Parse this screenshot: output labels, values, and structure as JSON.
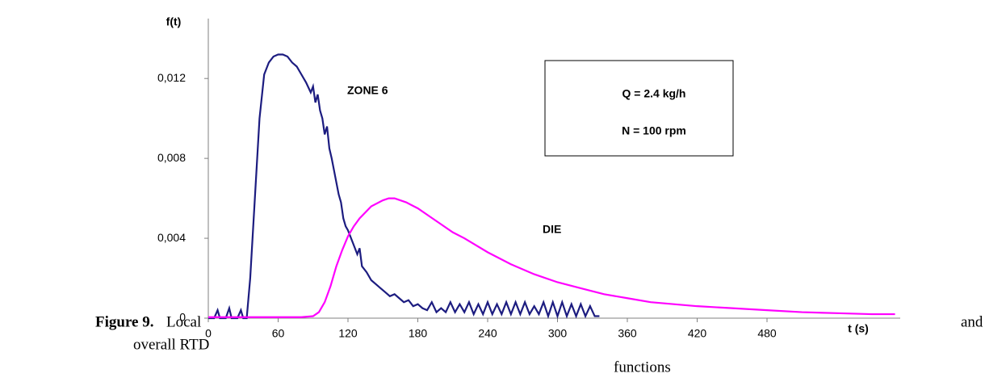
{
  "chart_data": {
    "type": "line",
    "y_label": "f(t)",
    "x_label": "t (s)",
    "xlim": [
      0,
      600
    ],
    "xticks": [
      0,
      60,
      120,
      180,
      240,
      300,
      360,
      420,
      480
    ],
    "ylim": [
      0,
      0.015
    ],
    "yticks": [
      0,
      {
        "value": 0.004,
        "label": "0,004"
      },
      {
        "value": 0.008,
        "label": "0,008"
      },
      {
        "value": 0.012,
        "label": "0,012"
      }
    ],
    "grid": false,
    "annotations": [
      "Q = 2.4 kg/h",
      "N = 100 rpm"
    ],
    "series": [
      {
        "name": "ZONE 6",
        "color": "#1c1c80",
        "x": [
          0,
          5,
          8,
          10,
          15,
          18,
          20,
          25,
          28,
          30,
          33,
          36,
          40,
          44,
          48,
          52,
          56,
          60,
          64,
          68,
          72,
          76,
          80,
          84,
          88,
          90,
          92,
          94,
          96,
          98,
          100,
          102,
          104,
          106,
          108,
          110,
          112,
          114,
          116,
          118,
          120,
          124,
          128,
          130,
          132,
          136,
          140,
          144,
          148,
          152,
          156,
          160,
          164,
          168,
          172,
          176,
          180,
          184,
          188,
          192,
          196,
          200,
          204,
          208,
          212,
          216,
          220,
          224,
          228,
          232,
          236,
          240,
          244,
          248,
          252,
          256,
          260,
          264,
          268,
          272,
          276,
          280,
          284,
          288,
          292,
          296,
          300,
          304,
          308,
          312,
          316,
          320,
          324,
          328,
          332,
          336
        ],
        "values": [
          0,
          0,
          0.0004,
          0,
          0,
          0.0005,
          0,
          0,
          0.0004,
          0,
          0,
          0.002,
          0.006,
          0.01,
          0.0122,
          0.0128,
          0.0131,
          0.0132,
          0.0132,
          0.0131,
          0.0128,
          0.0126,
          0.0122,
          0.0118,
          0.0113,
          0.0116,
          0.0108,
          0.0112,
          0.0104,
          0.01,
          0.0092,
          0.0096,
          0.0085,
          0.008,
          0.0074,
          0.0068,
          0.0062,
          0.0058,
          0.005,
          0.0046,
          0.0044,
          0.0038,
          0.0032,
          0.0035,
          0.0026,
          0.0023,
          0.0019,
          0.0017,
          0.0015,
          0.0013,
          0.0011,
          0.0012,
          0.001,
          0.0008,
          0.0009,
          0.0006,
          0.0007,
          0.0005,
          0.0004,
          0.0008,
          0.0003,
          0.0005,
          0.0003,
          0.0008,
          0.0003,
          0.0007,
          0.0003,
          0.0008,
          0.0002,
          0.0007,
          0.0002,
          0.0008,
          0.0002,
          0.0007,
          0.0002,
          0.0008,
          0.0002,
          0.0008,
          0.0002,
          0.0008,
          0.0002,
          0.0006,
          0.0002,
          0.0008,
          0.0001,
          0.0008,
          0.0001,
          0.0008,
          0.0001,
          0.0007,
          0.0001,
          0.0007,
          0.0001,
          0.0006,
          0.0001,
          0.0001
        ]
      },
      {
        "name": "DIE",
        "color": "#ff00ff",
        "x": [
          0,
          40,
          80,
          90,
          95,
          100,
          105,
          110,
          115,
          120,
          125,
          130,
          140,
          150,
          155,
          160,
          170,
          180,
          190,
          200,
          210,
          220,
          240,
          260,
          280,
          300,
          320,
          340,
          360,
          380,
          400,
          420,
          450,
          480,
          510,
          540,
          570,
          590
        ],
        "values": [
          5e-05,
          5e-05,
          5e-05,
          0.0001,
          0.0003,
          0.0008,
          0.0016,
          0.0026,
          0.0034,
          0.0041,
          0.0046,
          0.005,
          0.0056,
          0.0059,
          0.006,
          0.006,
          0.0058,
          0.0055,
          0.0051,
          0.0047,
          0.0043,
          0.004,
          0.0033,
          0.0027,
          0.0022,
          0.0018,
          0.0015,
          0.0012,
          0.001,
          0.0008,
          0.0007,
          0.0006,
          0.0005,
          0.0004,
          0.0003,
          0.00025,
          0.0002,
          0.0002
        ]
      }
    ]
  },
  "caption": {
    "label": "Figure 9.",
    "text_start": "Local",
    "text_middle": "and",
    "text_line2": "overall RTD",
    "text_end": "functions"
  }
}
